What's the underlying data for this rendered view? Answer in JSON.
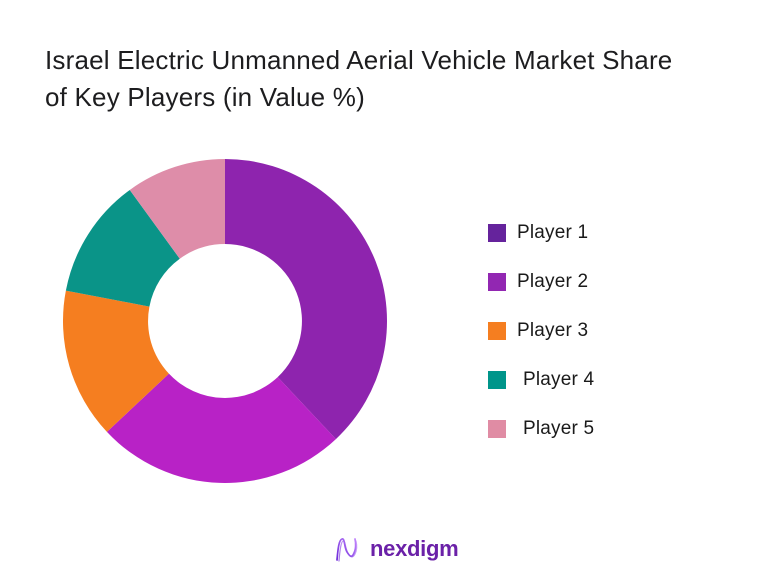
{
  "title": {
    "line1": "Israel Electric Unmanned Aerial Vehicle Market Share",
    "line2": "of Key Players (in Value %)",
    "full": "Israel Electric Unmanned Aerial Vehicle Market Share of Key Players (in Value %)"
  },
  "chart_data": {
    "type": "pie",
    "subtype": "donut",
    "title": "Israel Electric Unmanned Aerial Vehicle Market Share of Key Players (in Value %)",
    "categories": [
      "Player 1",
      "Player 2",
      "Player 3",
      "Player 4",
      "Player 5"
    ],
    "values": [
      38,
      25,
      15,
      12,
      10
    ],
    "unit": "%",
    "start_angle_deg": 0,
    "direction": "clockwise",
    "inner_radius_ratio": 0.475,
    "hole_color": "#ffffff",
    "data_labels": false,
    "legend_position": "right",
    "slice_colors": [
      "#8E24AE",
      "#B822C6",
      "#F57E20",
      "#0A9488",
      "#DE8DA9"
    ]
  },
  "legend": {
    "items": [
      {
        "label": "Player 1",
        "color": "#65239C"
      },
      {
        "label": "Player 2",
        "color": "#9227B2"
      },
      {
        "label": "Player 3",
        "color": "#F57E20"
      },
      {
        "label": "Player 4",
        "color": "#00958A"
      },
      {
        "label": "Player 5",
        "color": "#E08CA4"
      }
    ]
  },
  "footer_logo": {
    "text": "nexdigm",
    "text_color": "#6B21A8",
    "mark": "nexdigm-wave-mark",
    "mark_colors": [
      "#6D28D9",
      "#C084FC"
    ]
  }
}
